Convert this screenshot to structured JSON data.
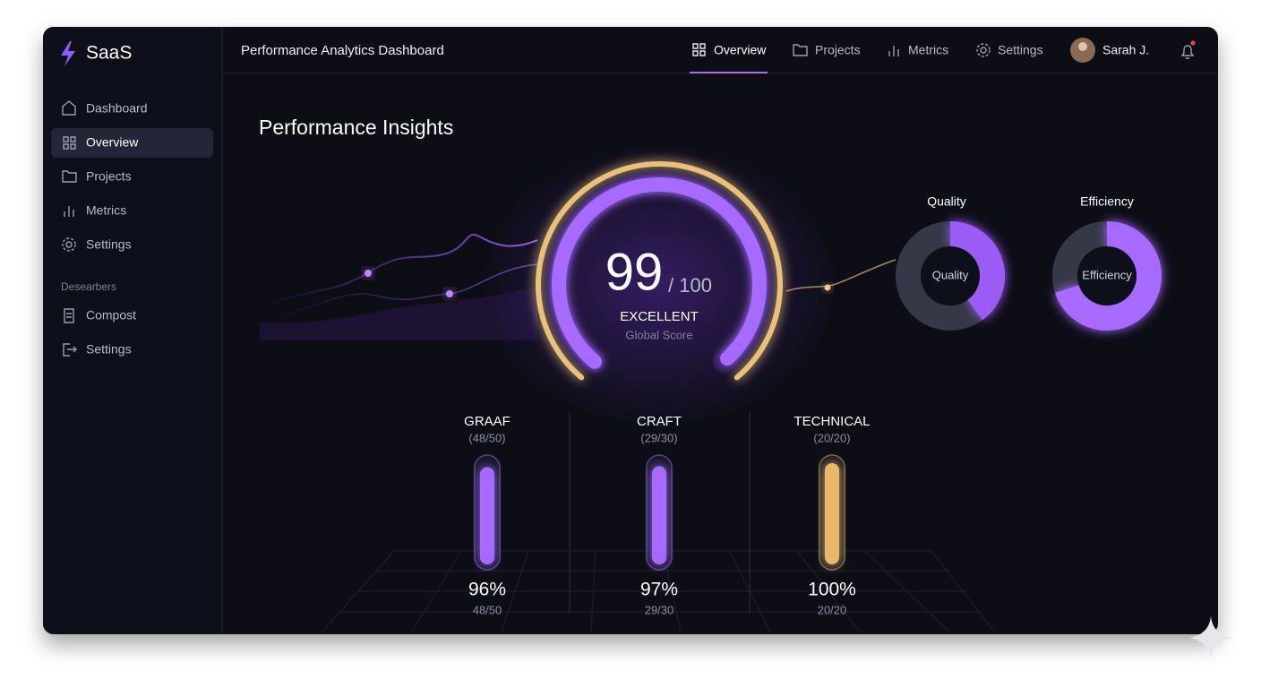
{
  "sidebar": {
    "brand": "SaaS",
    "nav": [
      "Dashboard",
      "Overview",
      "Projects",
      "Metrics",
      "Settings"
    ],
    "section": "Desearbers",
    "extra": [
      "Compost",
      "Settings"
    ]
  },
  "topbar": {
    "title": "Performance Analytics Dashboard",
    "tabs": [
      "Overview",
      "Projects",
      "Metrics",
      "Settings"
    ],
    "user": "Sarah J."
  },
  "main": {
    "heading": "Performance Insights",
    "score": {
      "value": 99,
      "max": {
        "value": 100,
        "label": "/ 100"
      },
      "rating": "EXCELLENT",
      "caption": "Global Score"
    },
    "donuts": [
      {
        "title": "Quality",
        "label": "Quality",
        "value": 40,
        "color": "#9b5cf6"
      },
      {
        "title": "Efficiency",
        "label": "Efficiency",
        "value": 70,
        "color": "#a66bff"
      }
    ],
    "bars": [
      {
        "name": "GRAAF",
        "subtitle": "(48/50)",
        "value": 96,
        "value_label": "96%",
        "fraction": "48/50",
        "color": "#a66bff"
      },
      {
        "name": "CRAFT",
        "subtitle": "(29/30)",
        "value": 97,
        "value_label": "97%",
        "fraction": "29/30",
        "color": "#a66bff"
      },
      {
        "name": "TECHNICAL",
        "subtitle": "(20/20)",
        "value": 100,
        "value_label": "100%",
        "fraction": "20/20",
        "color": "#e9b86a"
      }
    ]
  }
}
